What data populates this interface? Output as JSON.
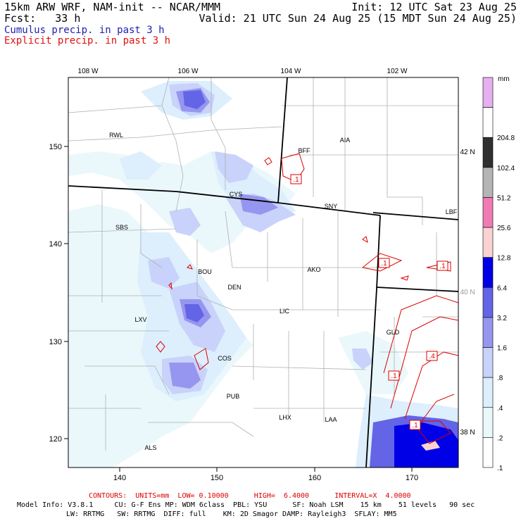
{
  "header": {
    "model_line": "15km ARW WRF, NAM-init -- NCAR/MMM",
    "fcst_line": "Fcst:   33 h",
    "init_line": "Init: 12 UTC Sat 23 Aug 25",
    "valid_line": "Valid: 21 UTC Sun 24 Aug 25 (15 MDT Sun 24 Aug 25)",
    "cumulus_label": "Cumulus precip. in past 3 h",
    "explicit_label": "Explicit precip. in past 3 h"
  },
  "colors": {
    "cumulus": "#2020b0",
    "explicit": "#e01010",
    "contour": "#dd0000",
    "state_border": "#000000",
    "county_line": "#b0b0b0"
  },
  "map": {
    "top_lon_labels": [
      "108 W",
      "106 W",
      "104 W",
      "102 W"
    ],
    "right_lat_labels": [
      "42 N",
      "40 N",
      "38 N"
    ],
    "bottom_ticks": [
      "140",
      "150",
      "160",
      "170"
    ],
    "left_ticks": [
      "120",
      "130",
      "140",
      "150"
    ],
    "stations": [
      "RWL",
      "BFF",
      "AIA",
      "CYS",
      "SNY",
      "LBF",
      "SBS",
      "BOU",
      "DEN",
      "AKO",
      "LXV",
      "LIC",
      "GLD",
      "COS",
      "PUB",
      "LHX",
      "LAA",
      "ALS"
    ],
    "contour_labels": [
      ".1",
      ".1",
      ".1",
      ".1",
      ".4",
      ".1"
    ]
  },
  "colorbar": {
    "unit": "mm",
    "labels": [
      "204.8",
      "102.4",
      "51.2",
      "25.6",
      "12.8",
      "6.4",
      "3.2",
      "1.6",
      ".8",
      ".4",
      ".2",
      ".1"
    ],
    "colors": [
      "#e6b0f0",
      "#ffffff",
      "#303030",
      "#b4b4b4",
      "#f07ab4",
      "#fad2d2",
      "#0000e6",
      "#6464e6",
      "#9696f0",
      "#c8d2fa",
      "#ddeefd",
      "#eaf8fb",
      "#ffffff"
    ]
  },
  "footer": {
    "contours_line": "CONTOURS:  UNITS=mm  LOW= 0.10000      HIGH=  6.4000      INTERVAL=X  4.0000",
    "model_info_1": "Model Info: V3.8.1     CU: G-F Ens MP: WDM 6class  PBL: YSU      SF: Noah LSM    15 km    51 levels   90 sec",
    "model_info_2": "LW: RRTMG   SW: RRTMG  DIFF: full    KM: 2D Smagor DAMP: Rayleigh3  SFLAY: MM5"
  }
}
